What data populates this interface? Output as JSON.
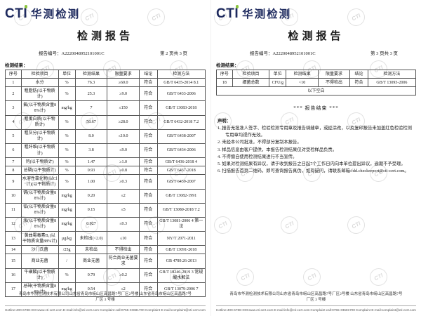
{
  "brand": {
    "logo_text": "CTI",
    "logo_cn": "华测检测",
    "navy": "#1e2a5e",
    "green": "#8bc53f"
  },
  "watermark_text": "CTI",
  "table_headers": [
    "序号",
    "检验项目",
    "单位",
    "检测结果",
    "限量要求",
    "结论",
    "检测方法"
  ],
  "page2": {
    "title": "检测报告",
    "report_no_label": "报告编号：",
    "report_no": "A2220048952101001C",
    "page_info": "第 2 页共 3 页",
    "results_label": "检测结果：",
    "table": {
      "headers": [
        "序号",
        "检验项目",
        "单位",
        "检测结果",
        "限量要求",
        "结论",
        "检测方法"
      ],
      "rows": [
        [
          "1",
          "水分",
          "%",
          "76.3",
          "≥60.0",
          "符合",
          "GB/T 6435-2014 8.1"
        ],
        [
          "2",
          "粗脂肪(以干物质计)",
          "%",
          "25.3",
          "≥9.0",
          "符合",
          "GB/T 6433-2006"
        ],
        [
          "3",
          "氟(以干物质含量88%计)",
          "mg/kg",
          "7",
          "≤150",
          "符合",
          "GB/T 13083-2018"
        ],
        [
          "4",
          "粗蛋白质(以干物质计)",
          "%",
          "56.67",
          "≥28.0",
          "符合",
          "GB/T 6432-2018 7.2"
        ],
        [
          "5",
          "粗灰分(以干物质计)",
          "%",
          "8.0",
          "≤10.0",
          "符合",
          "GB/T 6438-2007"
        ],
        [
          "6",
          "粗纤维(以干物质计)",
          "%",
          "3.8",
          "≤9.0",
          "符合",
          "GB/T 6434-2006"
        ],
        [
          "7",
          "钙(以干物质计)",
          "%",
          "1.47",
          "≥1.0",
          "符合",
          "GB/T 6436-2018 4"
        ],
        [
          "8",
          "总磷(以干物质计)",
          "%",
          "0.93",
          "≥0.8",
          "符合",
          "GB/T 6437-2018"
        ],
        [
          "9",
          "水溶性氯化物(以Cl⁻计)(以干物质计)",
          "%",
          "1.00",
          "≥0.3",
          "符合",
          "GB/T 6439-2007"
        ],
        [
          "10",
          "镉(以干物质含量88%计)",
          "mg/kg",
          "0.20",
          "≤2",
          "符合",
          "GB/T 13082-1991"
        ],
        [
          "11",
          "铅(以干物质含量88%计)",
          "mg/kg",
          "0.15",
          "≤5",
          "符合",
          "GB/T 13080-2018 7.2"
        ],
        [
          "12",
          "汞(以干物质含量88%计)",
          "mg/kg",
          "0.027",
          "≤0.3",
          "符合",
          "GB/T 13081-2006 4 第一法"
        ],
        [
          "13",
          "黄曲霉毒素B₁(以干物质含量88%计)",
          "μg/kg",
          "未检出(<2.0)",
          "≤10",
          "符合",
          "NY/T 2071-2011"
        ],
        [
          "14",
          "沙门氏菌",
          "/25g",
          "未检出",
          "不得检出",
          "符合",
          "GB/T 13091-2018"
        ],
        [
          "15",
          "商业无菌",
          "/",
          "商业无菌",
          "符合商业无菌要求",
          "符合",
          "GB 4789.26-2013"
        ],
        [
          "16",
          "牛磺酸(以干物质计)",
          "%",
          "0.79",
          "≥0.2",
          "符合",
          "GB/T 18246-2019 3 常规酸水解法"
        ],
        [
          "17",
          "总砷(干物质含量88%计)",
          "mg/kg",
          "0.54",
          "≤2",
          "符合",
          "GB/T 13079-2006 7"
        ]
      ]
    }
  },
  "page3": {
    "title": "检测报告",
    "report_no_label": "报告编号：",
    "report_no": "A2220048952101001C",
    "page_info": "第 3 页共 3 页",
    "results_label": "检测结果：",
    "table": {
      "headers": [
        "序号",
        "检验项目",
        "单位",
        "检测结果",
        "限量要求",
        "结论",
        "检测方法"
      ],
      "rows": [
        [
          "18",
          "细菌总数",
          "CFU/g",
          "<10",
          "不得检出",
          "符合",
          "GB/T 13093-2006"
        ]
      ],
      "span_note": "以下空白"
    },
    "report_end": "*** 报告结束 ***",
    "declaration": {
      "label": "声明：",
      "items": [
        "1.  报告无批准人签字、检验检测专用章及报告骑缝章，或经涂改，以及复印报告未加盖红色检验检测专用章均视作无效。",
        "2.  未经本公司批准，不得部分复制本报告。",
        "3.  样品信息由客户提供，本报告检测结果仅对受检样品负责。",
        "4.  不得擅自使用检测结果进行不当宣传。",
        "5.  如果对检测结果有异议，请于收到报告之日起7个工作日内向本单位提出异议，逾期不予受理。",
        "6.  扫描报告首页二维码，即可查询报告真伪，如有疑问，请联系邮箱:fdd.checkreport@cti-cert.com。"
      ]
    }
  },
  "footer": {
    "address_line1": "青岛市华测检测技术有限公司山东省青岛市崂山区高昌路7号厂区2号楼 山东省青岛市崂山区高昌路7号",
    "address_line2": "厂区 3 号楼",
    "contacts": [
      "Hotline:400-6788-333",
      "www.cti-cert.com",
      "E-mail:info@cti-cert.com",
      "Complaint call:0755-33681700",
      "Complaint E-mail:complaint@cti-cert.com"
    ]
  }
}
